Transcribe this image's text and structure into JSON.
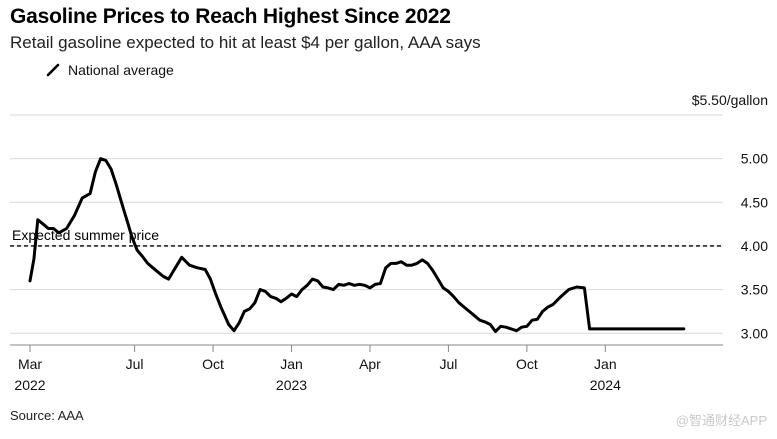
{
  "title": "Gasoline Prices to Reach Highest Since 2022",
  "subtitle": "Retail gasoline expected to hit at least $4 per gallon, AAA says",
  "source": "Source: AAA",
  "watermark": "@智通财经APP",
  "chart_data": {
    "type": "line",
    "y_unit_label": "$5.50/gallon",
    "ylim": [
      2.9,
      5.5
    ],
    "xlim": [
      0,
      26.5
    ],
    "x_unit": "months since Mar 2022",
    "y_ticks": [
      {
        "value": 5.0,
        "label": "5.00"
      },
      {
        "value": 4.5,
        "label": "4.50"
      },
      {
        "value": 4.0,
        "label": "4.00"
      },
      {
        "value": 3.5,
        "label": "3.50"
      },
      {
        "value": 3.0,
        "label": "3.00"
      }
    ],
    "x_ticks": [
      {
        "value": 0,
        "label": "Mar",
        "sublabel": "2022"
      },
      {
        "value": 4,
        "label": "Jul",
        "sublabel": ""
      },
      {
        "value": 7,
        "label": "Oct",
        "sublabel": ""
      },
      {
        "value": 10,
        "label": "Jan",
        "sublabel": "2023"
      },
      {
        "value": 13,
        "label": "Apr",
        "sublabel": ""
      },
      {
        "value": 16,
        "label": "Jul",
        "sublabel": ""
      },
      {
        "value": 19,
        "label": "Oct",
        "sublabel": ""
      },
      {
        "value": 22,
        "label": "Jan",
        "sublabel": "2024"
      }
    ],
    "series": [
      {
        "name": "National average",
        "color": "#000000",
        "x": [
          0.0,
          0.15,
          0.3,
          0.5,
          0.7,
          0.9,
          1.1,
          1.4,
          1.7,
          2.0,
          2.3,
          2.5,
          2.7,
          2.9,
          3.1,
          3.3,
          3.45,
          3.6,
          3.75,
          3.9,
          4.1,
          4.3,
          4.5,
          4.7,
          4.9,
          5.1,
          5.3,
          5.5,
          5.8,
          6.1,
          6.4,
          6.7,
          6.9,
          7.1,
          7.3,
          7.45,
          7.6,
          7.8,
          8.0,
          8.2,
          8.4,
          8.6,
          8.8,
          9.0,
          9.2,
          9.4,
          9.6,
          9.8,
          10.0,
          10.2,
          10.4,
          10.6,
          10.8,
          11.0,
          11.2,
          11.4,
          11.6,
          11.8,
          12.0,
          12.2,
          12.4,
          12.6,
          12.8,
          13.0,
          13.2,
          13.4,
          13.6,
          13.8,
          14.0,
          14.2,
          14.4,
          14.6,
          14.8,
          15.0,
          15.2,
          15.4,
          15.6,
          15.8,
          16.0,
          16.2,
          16.4,
          16.6,
          16.8,
          17.0,
          17.2,
          17.4,
          17.6,
          17.8,
          18.0,
          18.2,
          18.4,
          18.6,
          18.8,
          19.0,
          19.2,
          19.4,
          19.6,
          19.8,
          20.0,
          20.3,
          20.6,
          20.9,
          21.2,
          21.4,
          21.6,
          21.8,
          22.0,
          22.2,
          22.4,
          22.6,
          22.8,
          23.0,
          23.2,
          23.4,
          23.6,
          23.8,
          24.0,
          24.2,
          24.4,
          24.6,
          24.8,
          25.0
        ],
        "values": [
          3.6,
          3.85,
          4.3,
          4.25,
          4.2,
          4.2,
          4.15,
          4.2,
          4.35,
          4.55,
          4.6,
          4.85,
          5.0,
          4.98,
          4.88,
          4.7,
          4.55,
          4.4,
          4.25,
          4.1,
          3.95,
          3.88,
          3.8,
          3.75,
          3.7,
          3.65,
          3.62,
          3.72,
          3.87,
          3.78,
          3.75,
          3.73,
          3.62,
          3.45,
          3.3,
          3.2,
          3.1,
          3.03,
          3.12,
          3.25,
          3.28,
          3.35,
          3.5,
          3.48,
          3.42,
          3.4,
          3.36,
          3.4,
          3.45,
          3.42,
          3.5,
          3.55,
          3.62,
          3.6,
          3.53,
          3.52,
          3.5,
          3.56,
          3.55,
          3.57,
          3.55,
          3.56,
          3.55,
          3.52,
          3.56,
          3.57,
          3.75,
          3.8,
          3.8,
          3.82,
          3.78,
          3.78,
          3.8,
          3.84,
          3.8,
          3.72,
          3.62,
          3.52,
          3.48,
          3.42,
          3.35,
          3.3,
          3.25,
          3.2,
          3.15,
          3.13,
          3.1,
          3.02,
          3.08,
          3.07,
          3.05,
          3.03,
          3.07,
          3.08,
          3.15,
          3.16,
          3.25,
          3.3,
          3.33,
          3.42,
          3.5,
          3.53,
          3.52,
          3.05,
          3.05,
          3.05,
          3.05,
          3.05,
          3.05,
          3.05,
          3.05,
          3.05,
          3.05,
          3.05,
          3.05,
          3.05,
          3.05,
          3.05,
          3.05,
          3.05,
          3.05,
          3.05
        ]
      }
    ],
    "reference_line": {
      "value": 4.0,
      "label": "Expected summer price",
      "style": "dashed"
    }
  }
}
